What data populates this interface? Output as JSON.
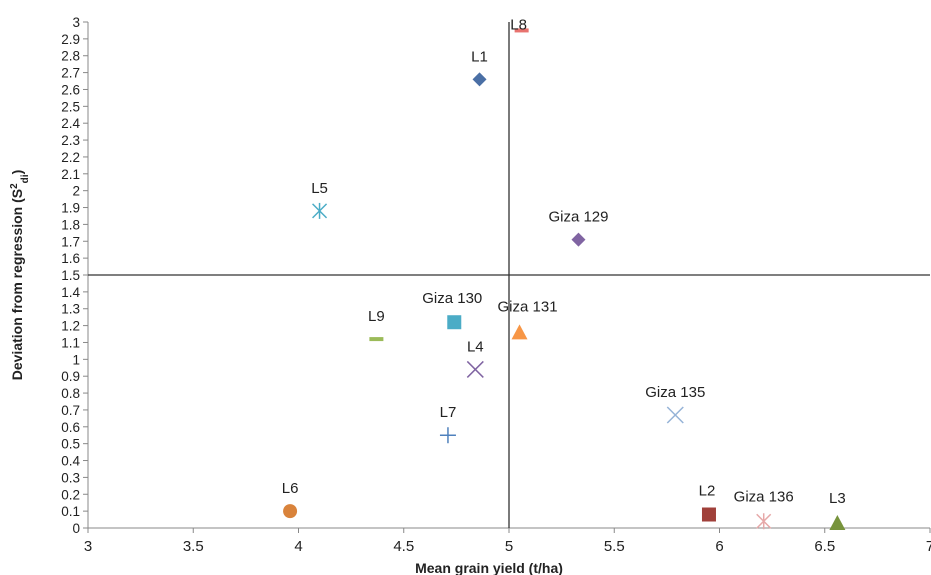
{
  "chart_data": {
    "type": "scatter",
    "xlabel": "Mean grain yield (t/ha)",
    "ylabel_main": "Deviation from regression (S",
    "ylabel_sup": "2",
    "ylabel_sub": "di",
    "ylabel_end": ")",
    "xlim": [
      3,
      7
    ],
    "ylim": [
      0,
      3
    ],
    "x_ticks": [
      3,
      3.5,
      4,
      4.5,
      5,
      5.5,
      6,
      6.5,
      7
    ],
    "y_step": 0.1,
    "ref_x": 5,
    "ref_y": 1.5,
    "legend": "none",
    "grid": false,
    "points": [
      {
        "label": "L1",
        "x": 4.86,
        "y": 2.66,
        "marker": "diamond",
        "color": "#4a6fa5"
      },
      {
        "label": "L8",
        "x": 5.06,
        "y": 2.95,
        "marker": "dash",
        "color": "#e8736f"
      },
      {
        "label": "L5",
        "x": 4.1,
        "y": 1.88,
        "marker": "asterisk",
        "color": "#4bacc6"
      },
      {
        "label": "Giza 129",
        "x": 5.33,
        "y": 1.71,
        "marker": "diamond",
        "color": "#8064a2"
      },
      {
        "label": "Giza 130",
        "x": 4.74,
        "y": 1.22,
        "marker": "square",
        "color": "#4bacc6"
      },
      {
        "label": "Giza 131",
        "x": 5.05,
        "y": 1.16,
        "marker": "triangle",
        "color": "#f79646"
      },
      {
        "label": "L9",
        "x": 4.37,
        "y": 1.12,
        "marker": "dash",
        "color": "#9bbb59"
      },
      {
        "label": "L4",
        "x": 4.84,
        "y": 0.94,
        "marker": "x",
        "color": "#8064a2"
      },
      {
        "label": "Giza 135",
        "x": 5.79,
        "y": 0.67,
        "marker": "x",
        "color": "#95b3d7"
      },
      {
        "label": "L7",
        "x": 4.71,
        "y": 0.55,
        "marker": "plus",
        "color": "#4f81bd"
      },
      {
        "label": "L6",
        "x": 3.96,
        "y": 0.1,
        "marker": "circle",
        "color": "#d9833b"
      },
      {
        "label": "L2",
        "x": 5.95,
        "y": 0.08,
        "marker": "square",
        "color": "#a0403a"
      },
      {
        "label": "Giza 136",
        "x": 6.21,
        "y": 0.04,
        "marker": "asterisk",
        "color": "#e6a8a8"
      },
      {
        "label": "L3",
        "x": 6.56,
        "y": 0.03,
        "marker": "triangle",
        "color": "#77933c"
      }
    ]
  }
}
